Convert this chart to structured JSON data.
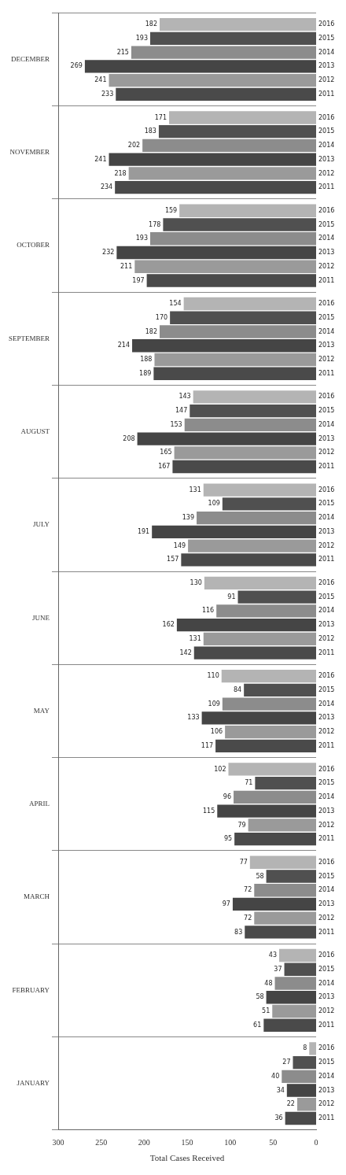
{
  "chart_data": {
    "type": "bar",
    "orientation": "horizontal",
    "xlabel": "Total Cases Received",
    "categories": [
      "DECEMBER",
      "NOVEMBER",
      "OCTOBER",
      "SEPTEMBER",
      "AUGUST",
      "JULY",
      "JUNE",
      "MAY",
      "APRIL",
      "MARCH",
      "FEBRUARY",
      "JANUARY"
    ],
    "series": [
      {
        "name": "2016",
        "color": "#b4b4b4",
        "values": [
          182,
          171,
          159,
          154,
          143,
          131,
          130,
          110,
          102,
          77,
          43,
          8
        ]
      },
      {
        "name": "2015",
        "color": "#505050",
        "values": [
          193,
          183,
          178,
          170,
          147,
          109,
          91,
          84,
          71,
          58,
          37,
          27
        ]
      },
      {
        "name": "2014",
        "color": "#8c8c8c",
        "values": [
          215,
          202,
          193,
          182,
          153,
          139,
          116,
          109,
          96,
          72,
          48,
          40
        ]
      },
      {
        "name": "2013",
        "color": "#454545",
        "values": [
          269,
          241,
          232,
          214,
          208,
          191,
          162,
          133,
          115,
          97,
          58,
          34
        ]
      },
      {
        "name": "2012",
        "color": "#9a9a9a",
        "values": [
          241,
          218,
          211,
          188,
          165,
          149,
          131,
          106,
          79,
          72,
          51,
          22
        ]
      },
      {
        "name": "2011",
        "color": "#4a4a4a",
        "values": [
          233,
          234,
          197,
          189,
          167,
          157,
          142,
          117,
          95,
          83,
          61,
          36
        ]
      }
    ],
    "xlim": [
      300,
      0
    ],
    "xticks": [
      0,
      50,
      100,
      150,
      200,
      250,
      300
    ],
    "grid": "y",
    "data_labels": true,
    "legend": false
  }
}
